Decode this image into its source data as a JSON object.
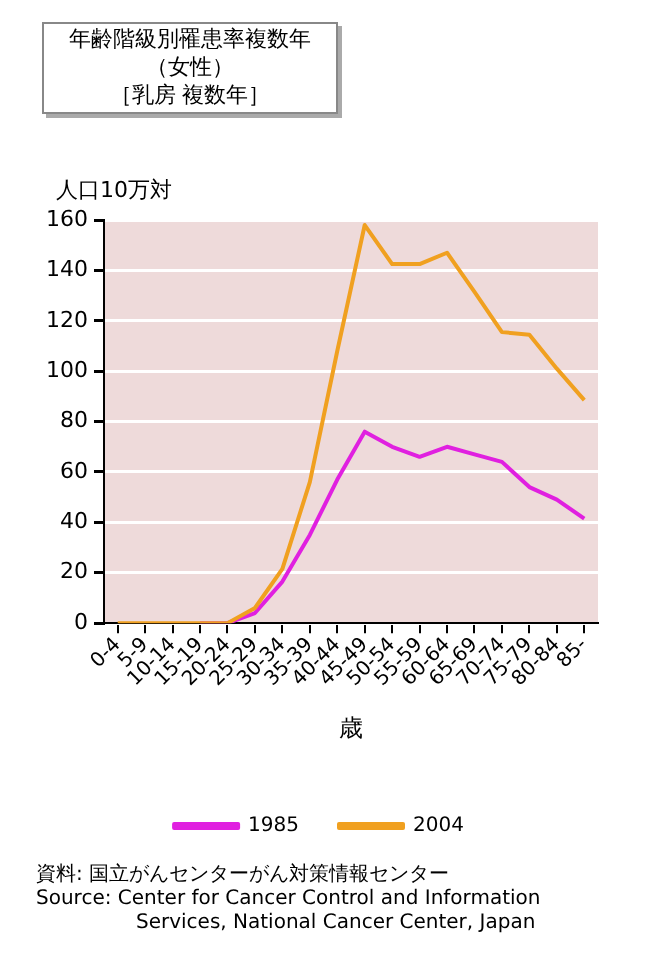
{
  "chart_data": {
    "type": "line",
    "title": "年齢階級別罹患率複数年（女性）",
    "subtitle": "［乳房 複数年］",
    "ylabel": "人口10万対",
    "xlabel": "歳",
    "categories": [
      "0-4",
      "5-9",
      "10-14",
      "15-19",
      "20-24",
      "25-29",
      "30-34",
      "35-39",
      "40-44",
      "45-49",
      "50-54",
      "55-59",
      "60-64",
      "65-69",
      "70-74",
      "75-79",
      "80-84",
      "85-"
    ],
    "series": [
      {
        "name": "1985",
        "color": "#e020e0",
        "values": [
          null,
          null,
          null,
          0,
          0,
          4,
          16.5,
          35,
          57,
          76,
          70,
          66,
          70,
          67,
          64,
          54,
          49,
          41.5
        ]
      },
      {
        "name": "2004",
        "color": "#f0a020",
        "values": [
          0,
          0,
          0,
          0,
          0,
          6,
          21.5,
          56,
          108,
          158,
          142.5,
          142.5,
          147,
          131.5,
          115.5,
          114.5,
          101,
          88.5
        ]
      }
    ],
    "ylim": [
      0,
      160
    ],
    "yticks": [
      0,
      20,
      40,
      60,
      80,
      100,
      120,
      140,
      160
    ],
    "grid": "y",
    "legend": "bottom",
    "marker": "none",
    "line_style": "solid",
    "annotations": [
      "資料: 国立がんセンターがん対策情報センター",
      "Source: Center for Cancer Control and Information Services, National Cancer Center, Japan"
    ]
  }
}
